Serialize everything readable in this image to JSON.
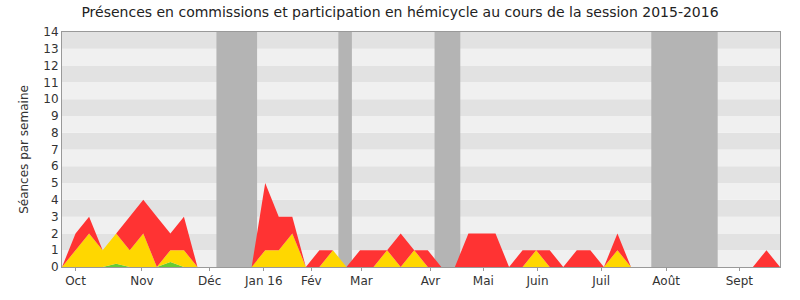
{
  "chart_data": {
    "type": "area",
    "stacked": true,
    "grid": true,
    "title": "Présences en commissions et participation en hémicycle au cours de la session 2015-2016",
    "y_label": "Séances par semaine",
    "x": [
      0,
      1,
      2,
      3,
      4,
      5,
      6,
      7,
      8,
      9,
      10,
      11,
      12,
      13,
      14,
      15,
      16,
      17,
      18,
      19,
      20,
      21,
      22,
      23,
      24,
      25,
      26,
      27,
      28,
      29,
      30,
      31,
      32,
      33,
      34,
      35,
      36,
      37,
      38,
      39,
      40,
      41,
      42,
      43,
      44,
      45,
      46,
      47,
      48,
      49,
      50,
      51,
      52,
      53
    ],
    "xlim": [
      0,
      53
    ],
    "xticks": [
      {
        "value": 1,
        "label": "Oct"
      },
      {
        "value": 5.9,
        "label": "Nov"
      },
      {
        "value": 10.9,
        "label": "Déc"
      },
      {
        "value": 14.9,
        "label": "Jan 16"
      },
      {
        "value": 18.4,
        "label": "Fév"
      },
      {
        "value": 22.1,
        "label": "Mar"
      },
      {
        "value": 27.2,
        "label": "Avr"
      },
      {
        "value": 31.1,
        "label": "Mai"
      },
      {
        "value": 35.1,
        "label": "Juin"
      },
      {
        "value": 39.8,
        "label": "Juil"
      },
      {
        "value": 44.6,
        "label": "Août"
      },
      {
        "value": 50,
        "label": "Sept"
      }
    ],
    "ylim": [
      0,
      14
    ],
    "yticks": [
      0,
      1,
      2,
      3,
      4,
      5,
      6,
      7,
      8,
      9,
      10,
      11,
      12,
      13,
      14
    ],
    "shaded_ranges": [
      [
        11.4,
        14.4
      ],
      [
        20.4,
        21.4
      ],
      [
        27.5,
        29.4
      ],
      [
        43.5,
        48.4
      ]
    ],
    "series": [
      {
        "color": "#66cc33",
        "values": [
          0,
          0,
          0,
          0,
          0.2,
          0,
          0,
          0,
          0.3,
          0,
          0,
          0,
          0,
          0,
          0,
          0,
          0,
          0,
          0,
          0,
          0,
          0,
          0,
          0,
          0,
          0,
          0,
          0,
          0,
          0,
          0,
          0,
          0,
          0,
          0,
          0,
          0,
          0,
          0,
          0,
          0,
          0,
          0,
          0,
          0,
          0,
          0,
          0,
          0,
          0,
          0,
          0,
          0,
          0
        ]
      },
      {
        "color": "#ffd700",
        "values": [
          0,
          1,
          2,
          1,
          1.8,
          1,
          2,
          0,
          0.7,
          1,
          0,
          0,
          0,
          0,
          0,
          1,
          1,
          2,
          0,
          0,
          1,
          0,
          0,
          0,
          1,
          0,
          1,
          0,
          0,
          0,
          0,
          0,
          0,
          0,
          0,
          1,
          0,
          0,
          0,
          0,
          0,
          1,
          0,
          0,
          0,
          0,
          0,
          0,
          0,
          0,
          0,
          0,
          0,
          0
        ]
      },
      {
        "color": "#ff3333",
        "values": [
          0,
          1,
          1,
          0,
          0,
          2,
          2,
          3,
          1,
          2,
          0,
          0,
          0,
          0,
          0,
          4,
          2,
          1,
          0,
          1,
          0,
          0,
          1,
          1,
          0,
          2,
          0,
          1,
          0,
          0,
          2,
          2,
          2,
          0,
          1,
          0,
          1,
          0,
          1,
          1,
          0,
          1,
          0,
          0,
          0,
          0,
          0,
          0,
          0,
          0,
          0,
          0,
          1,
          0
        ]
      }
    ]
  }
}
